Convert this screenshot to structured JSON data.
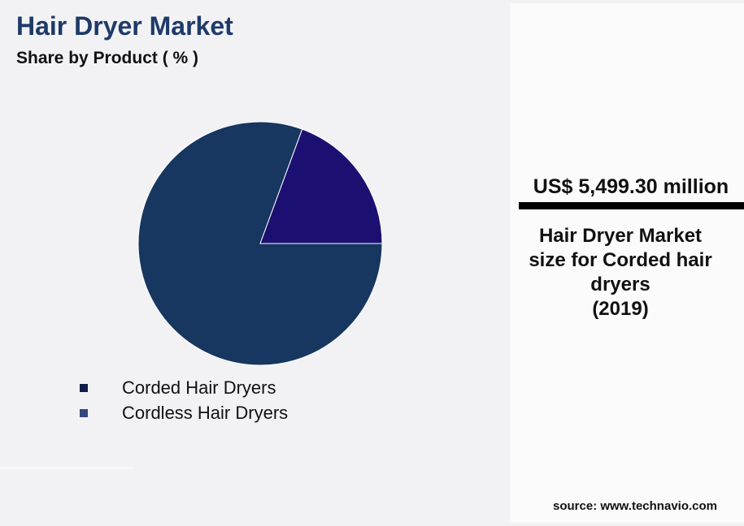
{
  "header": {
    "title": "Hair Dryer Market",
    "subtitle": "Share by Product ( % )"
  },
  "chart_data": {
    "type": "pie",
    "title": "Hair Dryer Market",
    "subtitle": "Share by Product ( % )",
    "categories": [
      "Corded Hair Dryers",
      "Cordless Hair Dryers"
    ],
    "values": [
      80.6,
      19.4
    ],
    "slice_colors": [
      "#173660",
      "#1b1072"
    ],
    "legend_colors": [
      "#0f1f4a",
      "#34477e"
    ],
    "legend_position": "bottom"
  },
  "panel": {
    "value": "US$ 5,499.30 million",
    "description": [
      "Hair Dryer Market",
      "size for Corded hair",
      "dryers",
      "(2019)"
    ]
  },
  "source": "source: www.technavio.com"
}
